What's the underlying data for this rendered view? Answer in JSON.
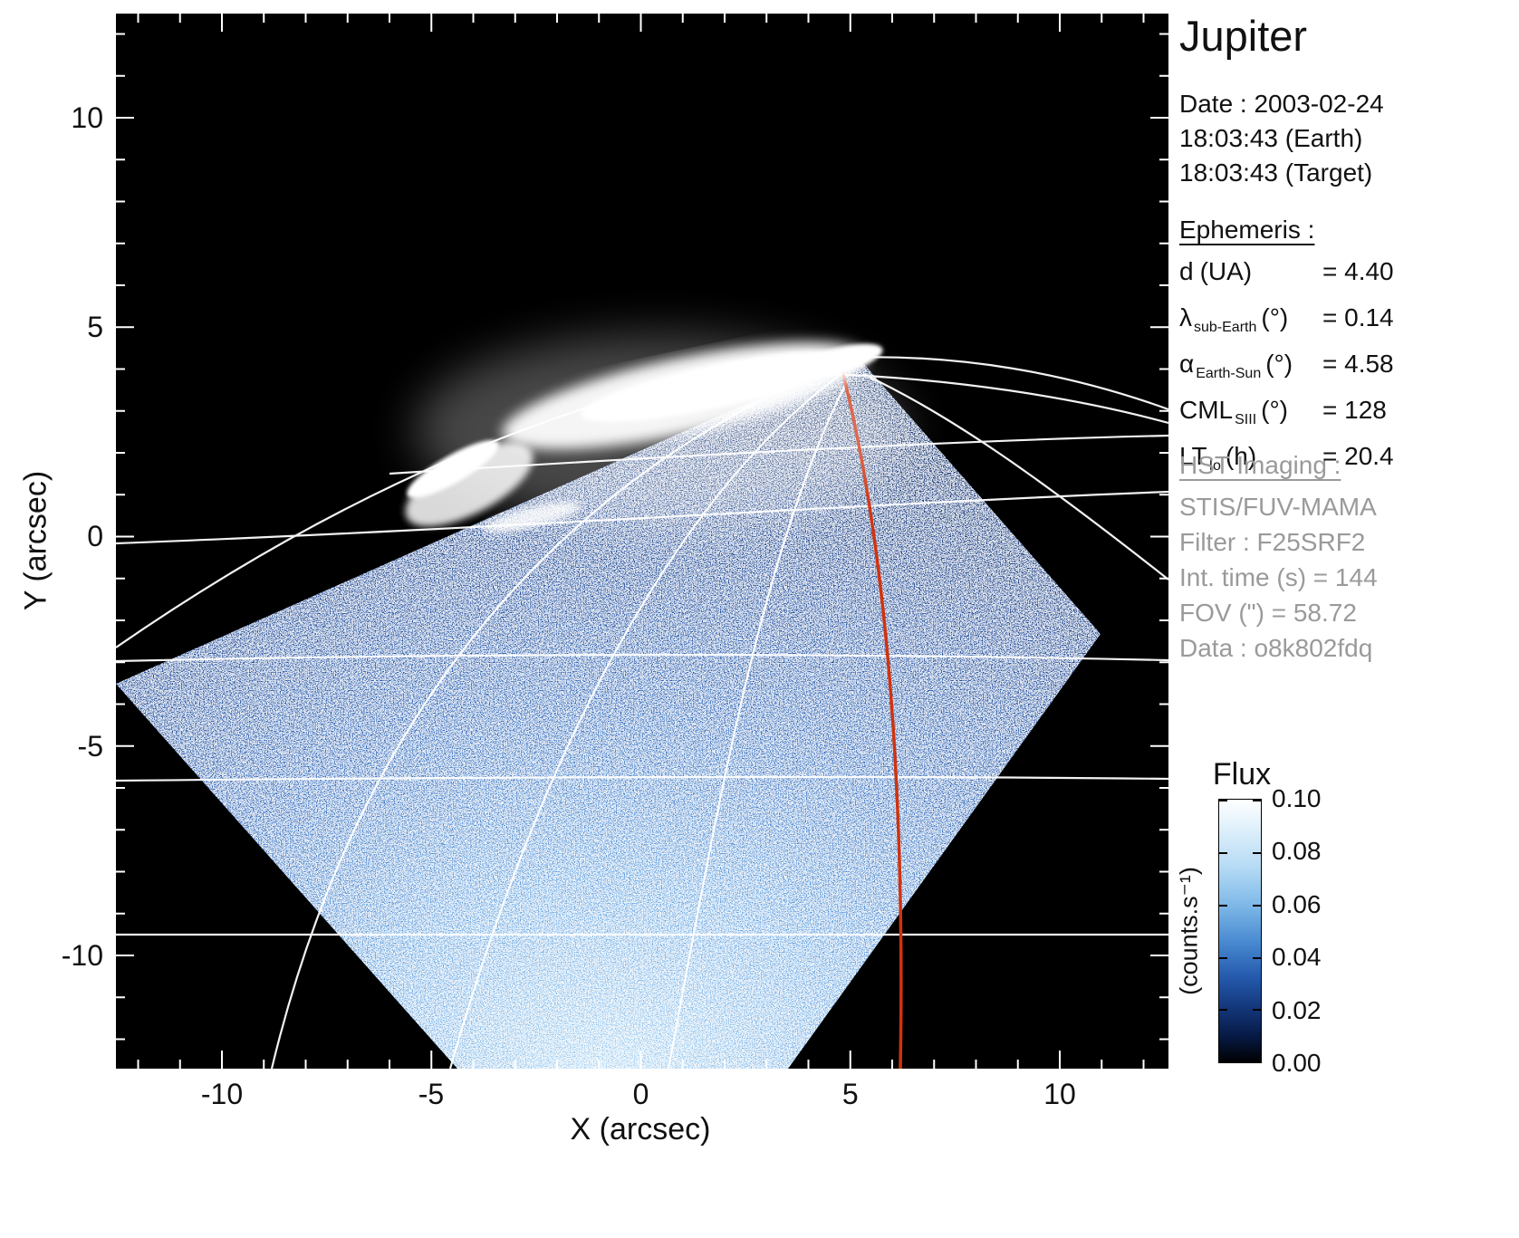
{
  "title": "Jupiter",
  "observation": {
    "date": "Date : 2003-02-24",
    "time_earth": "18:03:43 (Earth)",
    "time_target": "18:03:43 (Target)"
  },
  "ephemeris": {
    "heading": "Ephemeris :",
    "rows": [
      {
        "symbol": "d",
        "sub": "",
        "unit": "(UA)",
        "value": "= 4.40"
      },
      {
        "symbol": "λ",
        "sub": "sub-Earth",
        "unit": "(°)",
        "value": "= 0.14"
      },
      {
        "symbol": "α",
        "sub": "Earth-Sun",
        "unit": "(°)",
        "value": "= 4.58"
      },
      {
        "symbol": "CML",
        "sub": "SIII",
        "unit": "(°)",
        "value": "= 128"
      },
      {
        "symbol": "LT",
        "sub": "Io",
        "unit": "(h)",
        "value": "= 20.4"
      }
    ]
  },
  "hst": {
    "heading": "HST Imaging :",
    "lines": [
      "STIS/FUV-MAMA",
      "Filter : F25SRF2",
      "Int. time (s) = 144",
      "FOV (\") = 58.72",
      "Data : o8k802fdq"
    ]
  },
  "axes": {
    "x": {
      "label": "X (arcsec)",
      "ticks": [
        "-10",
        "-5",
        "0",
        "5",
        "10"
      ]
    },
    "y": {
      "label": "Y (arcsec)",
      "ticks": [
        "10",
        "5",
        "0",
        "-5",
        "-10"
      ]
    }
  },
  "colorbar": {
    "title": "Flux",
    "unit": "(counts.s⁻¹)",
    "ticks": [
      "0.10",
      "0.08",
      "0.06",
      "0.04",
      "0.02",
      "0.00"
    ]
  },
  "colors": {
    "background": "#000000",
    "graticule": "#ffffff",
    "highlight_meridian": "#cf3310",
    "secondary_text": "#9a9a9a",
    "disk_blue": "#2c65b8"
  },
  "chart_data": {
    "type": "heatmap",
    "title": "Jupiter",
    "xlabel": "X (arcsec)",
    "ylabel": "Y (arcsec)",
    "xlim": [
      -12.5,
      12.6
    ],
    "ylim": [
      -12.7,
      12.5
    ],
    "x_ticks": [
      -10,
      -5,
      0,
      5,
      10
    ],
    "y_ticks": [
      10,
      5,
      0,
      -5,
      -10
    ],
    "grid": "planetary latitude/longitude graticule in white, planet limb arc in white, one meridian track highlighted in red from about (5,4) to (6.3,-12.7) arcsec",
    "colorbar": {
      "label": "Flux",
      "unit": "counts.s-1",
      "min": 0.0,
      "max": 0.1,
      "tick_values": [
        0.1,
        0.08,
        0.06,
        0.04,
        0.02,
        0.0
      ]
    },
    "content": "HST STIS FUV-MAMA far-UV image of Jupiter: diamond-shaped detector field of view filled with noisy blue planetary dayglow (≈0.02–0.06 counts/s, brightening toward bottom center), saturated white northern auroral oval with curled western hook spanning roughly x=-5.5 to +5 arcsec at y≈+1 to +4.5 arcsec, black sky elsewhere"
  }
}
